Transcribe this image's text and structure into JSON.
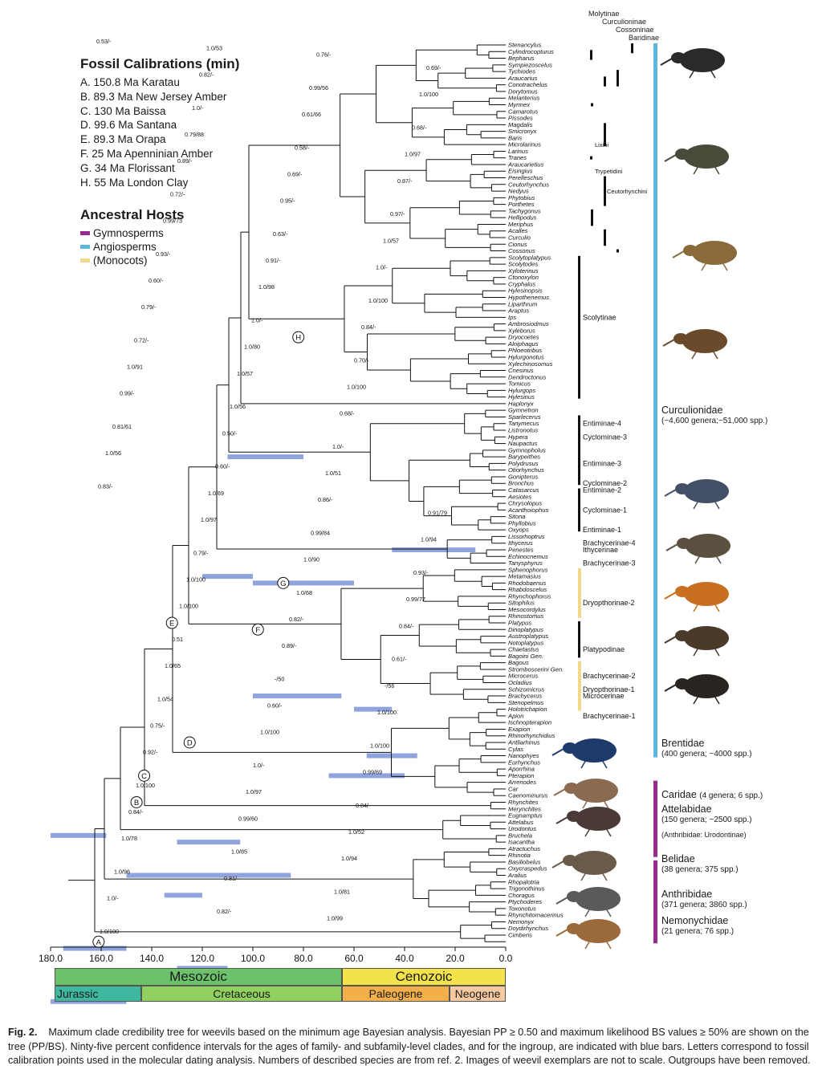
{
  "legend": {
    "calibration_title": "Fossil Calibrations (min)",
    "calibrations": [
      "A. 150.8 Ma Karatau",
      "B. 89.3 Ma New Jersey Amber",
      "C. 130 Ma Baissa",
      "D. 99.6 Ma Santana",
      "E. 89.3 Ma Orapa",
      "F.  25 Ma Apenninian Amber",
      "G. 34 Ma Florissant",
      "H. 55 Ma London Clay"
    ],
    "hosts_title": "Ancestral Hosts",
    "hosts": [
      {
        "label": "Gymnosperms",
        "color": "#9b2a8e"
      },
      {
        "label": "Angiosperms",
        "color": "#5bb8dc"
      },
      {
        "label": "(Monocots)",
        "color": "#f2d98a"
      }
    ]
  },
  "top_subfamilies": [
    "Molytinae",
    "Curculioninae",
    "Cossoninae",
    "Baridinae"
  ],
  "taxa": [
    "Stenancylus",
    "Cylindrocopturus",
    "Bepharus",
    "Sympiezoscelus",
    "Tychiodes",
    "Araucarius",
    "Conotrachelus",
    "Dorytomus",
    "Melanterius",
    "Myrmex",
    "Camarotus",
    "Pissodes",
    "Magdalis",
    "Smicronyx",
    "Baris",
    "Microlarinus",
    "Larinus",
    "Tranes",
    "Araucarietius",
    "Eisingius",
    "Perelleschus",
    "Ceutorhynchus",
    "Nedyus",
    "Phytobius",
    "Porthetes",
    "Tachygonus",
    "Hellipodus",
    "Meriphus",
    "Acalles",
    "Curculio",
    "Cionus",
    "Cossonus",
    "Scolytoplatypus",
    "Scolytodes",
    "Xyloterinus",
    "Ctonoxylon",
    "Cryphalus",
    "Hylesinopsis",
    "Hypothenemus",
    "Liparthrum",
    "Araptus",
    "Ips",
    "Ambrosiodmus",
    "Xyleborus",
    "Dryocoetes",
    "Alniphagus",
    "Phloeotribus",
    "Hylurgonotus",
    "Xylechinosomus",
    "Cnesinus",
    "Dendroctonus",
    "Tomicus",
    "Hylurgops",
    "Hylesinus",
    "Haplonyx",
    "Gymnetron",
    "Sparlecerus",
    "Tanymecus",
    "Listronotus",
    "Hypera",
    "Naupactus",
    "Gymnopholus",
    "Barypeithes",
    "Polydrusus",
    "Otiorhynchus",
    "Gonipterus",
    "Bronchus",
    "Catasarcus",
    "Aesiotes",
    "Chrysolopus",
    "Acanthoiophus",
    "Sitona",
    "Phyllobius",
    "Oxyops",
    "Lissorhoptrus",
    "Ithycerus",
    "Penestes",
    "Echinocnemus",
    "Tanysphyrus",
    "Sphenophorus",
    "Metamasius",
    "Rhodobaenus",
    "Rhabdoscelus",
    "Rhynchophorus",
    "Sitophilus",
    "Mesocordylus",
    "Rhinostomus",
    "Platypus",
    "Dinoplatypus",
    "Austroplatypus",
    "Notoplatypus",
    "Chaetastus",
    "Bagoini Gen.",
    "Bagous",
    "Stromboscerini Gen.",
    "Microcerus",
    "Ocladius",
    "Schizomicrus",
    "Brachycerus",
    "Stenopelmus",
    "Holotrichapion",
    "Apion",
    "Ischnopterapion",
    "Exapion",
    "Rhinorhynchidius",
    "Antliarhinus",
    "Cylas",
    "Nanophyes",
    "Eurhynchus",
    "Aporrhina",
    "Pterapion",
    "Arrenodes",
    "Car",
    "Caenominurus",
    "Rhynchites",
    "Merynchites",
    "Eugnamptus",
    "Attelabus",
    "Urodontus",
    "Bruchela",
    "Isacantha",
    "Atractuchus",
    "Rhinotia",
    "Basiliobelus",
    "Oxycraspedus",
    "Aralius",
    "Rhopalotria",
    "Trigonothinus",
    "Choragus",
    "Ptychoderes",
    "Toxonotus",
    "Rhynchitomacerinus",
    "Nemonyx",
    "Doydirhynchus",
    "Cimberis"
  ],
  "support_labels": [
    "0.53/-",
    "1.0/53",
    "0.76/-",
    "0.69/-",
    "0.82/-",
    "0.99/56",
    "1.0/100",
    "1.0/-",
    "0.61/66",
    "0.68/-",
    "0.79/88",
    "0.58/-",
    "1.0/97",
    "0.89/-",
    "0.69/-",
    "0.87/-",
    "0.72/-",
    "0.95/-",
    "0.97/-",
    "0.99/73",
    "0.63/-",
    "1.0/57",
    "0.93/-",
    "0.91/-",
    "1.0/-",
    "0.60/-",
    "1.0/98",
    "1.0/100",
    "0.79/-",
    "1.0/-",
    "0.84/-",
    "0.72/-",
    "1.0/80",
    "0.70/-",
    "1.0/91",
    "1.0/57",
    "1.0/100",
    "0.99/-",
    "1.0/56",
    "0.68/-",
    "0.81/61",
    "0.50/-",
    "1.0/-",
    "1.0/56",
    "0.60/-",
    "1.0/51",
    "0.83/-",
    "1.0/69",
    "0.86/-",
    "0.91/79",
    "1.0/97",
    "0.99/84",
    "1.0/94",
    "0.79/-",
    "1.0/90",
    "0.93/-",
    "1.0/100",
    "1.0/68",
    "0.99/77",
    "1.0/100",
    "0.82/-",
    "0.84/-",
    "0.51",
    "0.89/-",
    "0.61/-",
    "1.0/65",
    "-/50",
    "-/56",
    "1.0/54",
    "0.60/-",
    "1.0/100",
    "0.75/-",
    "1.0/100",
    "1.0/100",
    "0.92/-",
    "1.0/-",
    "0.99/69",
    "1.0/100",
    "1.0/97",
    "0.84/-",
    "0.84/-",
    "0.99/60",
    "1.0/52",
    "1.0/78",
    "1.0/85",
    "1.0/94",
    "1.0/96",
    "0.81/-",
    "1.0/81",
    "1.0/-",
    "0.82/-",
    "1.0/99",
    "1.0/100"
  ],
  "calibration_nodes": [
    "A",
    "B",
    "C",
    "D",
    "E",
    "F",
    "G",
    "H"
  ],
  "tribe_labels": [
    "Lixini",
    "Trypetidini",
    "Ceutorhynchini"
  ],
  "subfamily_labels": [
    "Scolytinae",
    "Entiminae-4",
    "Cyclominae-3",
    "Entiminae-3",
    "Cyclominae-2",
    "Entiminae-2",
    "Cyclominae-1",
    "Entiminae-1",
    "Brachycerinae-4",
    "Ithycerinae",
    "Brachycerinae-3",
    "Dryopthorinae-2",
    "Platypodinae",
    "Brachycerinae-2",
    "Dryopthorinae-1",
    "Microcerinae",
    "Brachycerinae-1"
  ],
  "families": [
    {
      "name": "Curculionidae",
      "detail": "(~4,600 genera;~51,000 spp.)"
    },
    {
      "name": "Brentidae",
      "detail": "(400 genera; ~4000 spp.)"
    },
    {
      "name": "Caridae",
      "detail": "(4 genera; 6 spp.)"
    },
    {
      "name": "Attelabidae",
      "detail": "(150 genera; ~2500 spp.)"
    },
    {
      "name": "",
      "detail": "(Anthribidae: Urodontinae)"
    },
    {
      "name": "Belidae",
      "detail": "(38 genera; 375 spp.)"
    },
    {
      "name": "Anthribidae",
      "detail": "(371 genera; 3860 spp.)"
    },
    {
      "name": "Nemonychidae",
      "detail": "(21 genera; 76 spp.)"
    }
  ],
  "axis": {
    "ticks": [
      "180.0",
      "160.0",
      "140.0",
      "120.0",
      "100.0",
      "80.0",
      "60.0",
      "40.0",
      "20.0",
      "0.0"
    ],
    "eras": [
      "Mesozoic",
      "Cenozoic"
    ],
    "periods": [
      "Jurassic",
      "Cretaceous",
      "Paleogene",
      "Neogene"
    ],
    "era_colors": {
      "Mesozoic": "#6cc26a",
      "Cenozoic": "#f4e24a",
      "Jurassic": "#3fb8a0",
      "Cretaceous": "#8fd05e",
      "Paleogene": "#f3b04a",
      "Neogene": "#f6c9a0"
    }
  },
  "caption": {
    "label": "Fig. 2.",
    "text": "Maximum clade credibility tree for weevils based on the minimum age Bayesian analysis. Bayesian PP ≥ 0.50 and maximum likelihood BS values ≥ 50% are shown on the tree (PP/BS). Ninty-five percent confidence intervals for the ages of family- and subfamily-level clades, and for the ingroup, are indicated with blue bars. Letters correspond to fossil calibration points used in the molecular dating analysis. Numbers of described species are from ref. 2. Images of weevil exemplars are not to scale. Outgroups have been removed."
  }
}
